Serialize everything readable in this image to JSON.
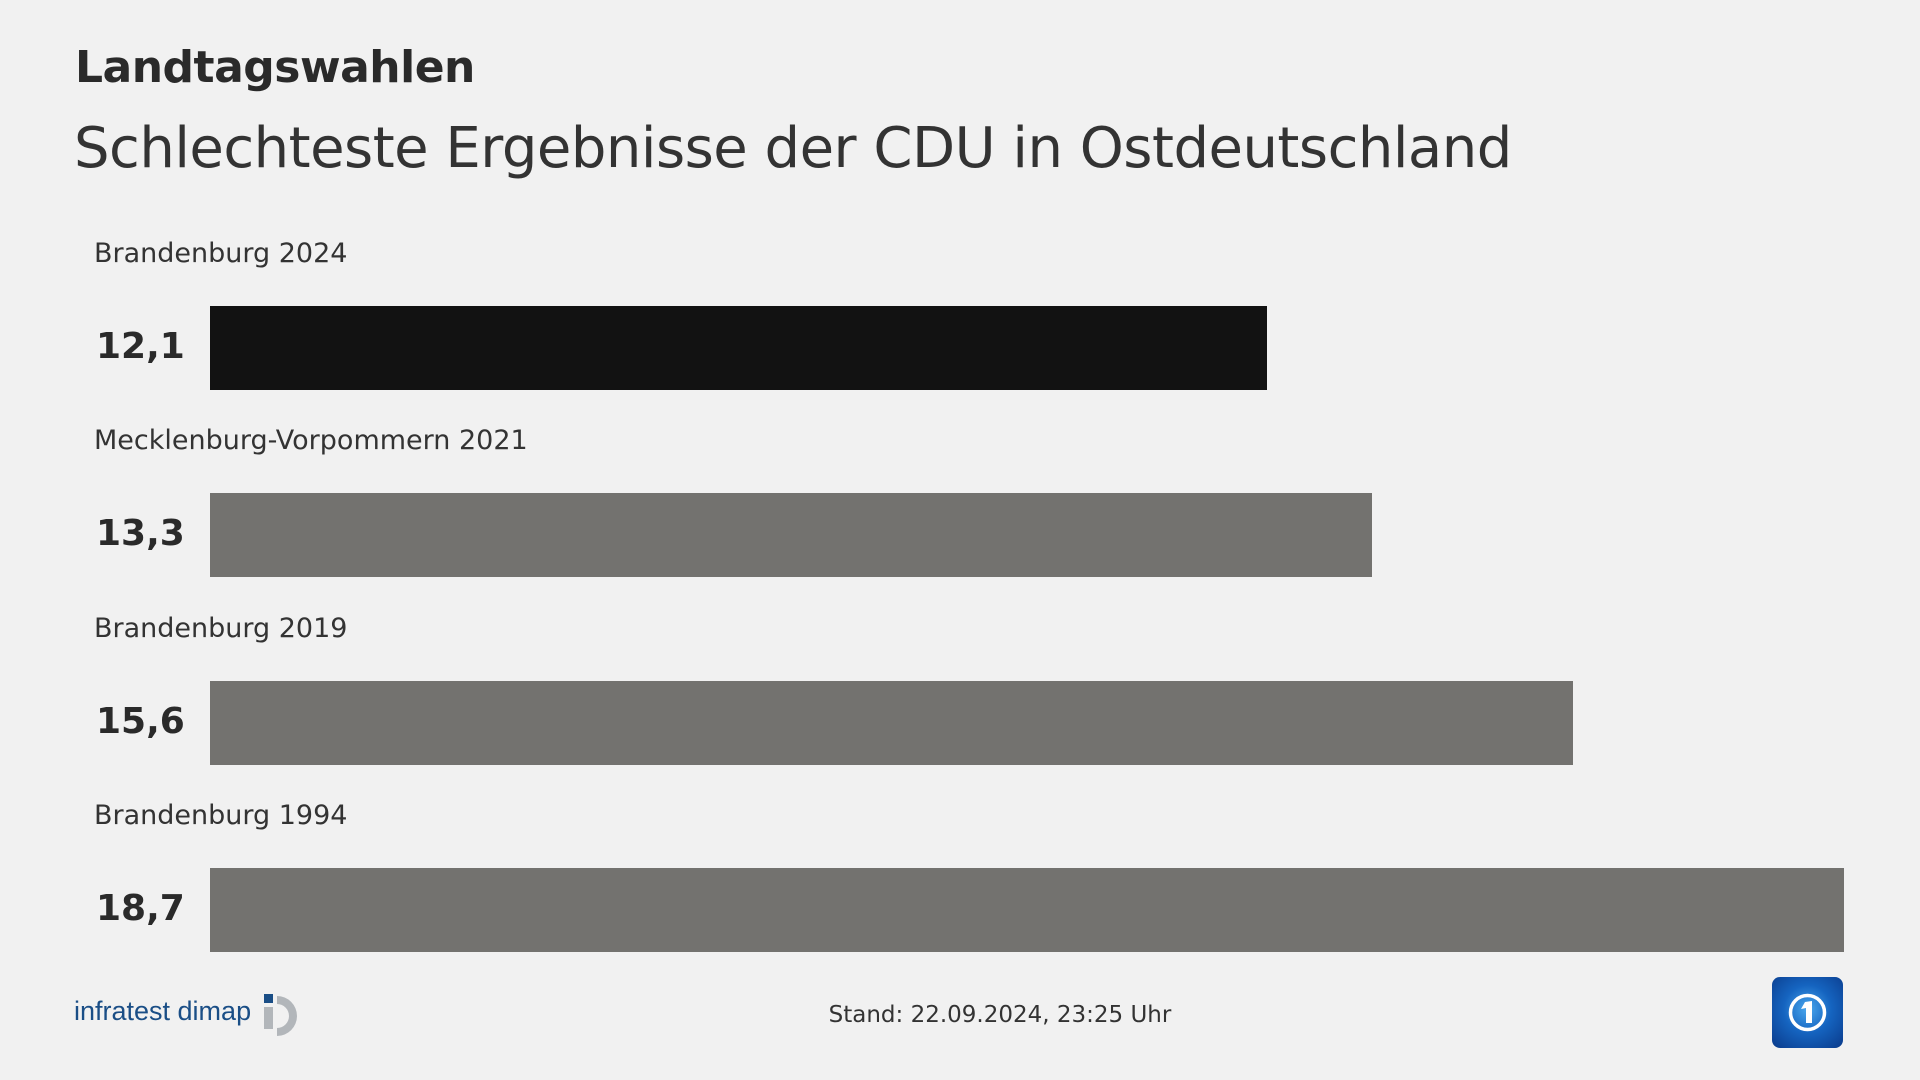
{
  "header": {
    "kicker": "Landtagswahlen",
    "title": "Schlechteste Ergebnisse der CDU in Ostdeutschland"
  },
  "chart_data": {
    "type": "bar",
    "orientation": "horizontal",
    "categories": [
      "Brandenburg 2024",
      "Mecklenburg-Vorpommern 2021",
      "Brandenburg 2019",
      "Brandenburg 1994"
    ],
    "values": [
      12.1,
      13.3,
      15.6,
      18.7
    ],
    "value_labels": [
      "12,1",
      "13,3",
      "15,6",
      "18,7"
    ],
    "colors": [
      "#121212",
      "#73726f",
      "#73726f",
      "#73726f"
    ],
    "xlim": [
      0,
      18.7
    ],
    "grid": false
  },
  "footer": {
    "stand": "Stand:  22.09.2024, 23:25 Uhr",
    "source": "infratest dimap",
    "source_color": "#1a4e86",
    "broadcaster_logo": "tagesschau-globe-icon"
  }
}
